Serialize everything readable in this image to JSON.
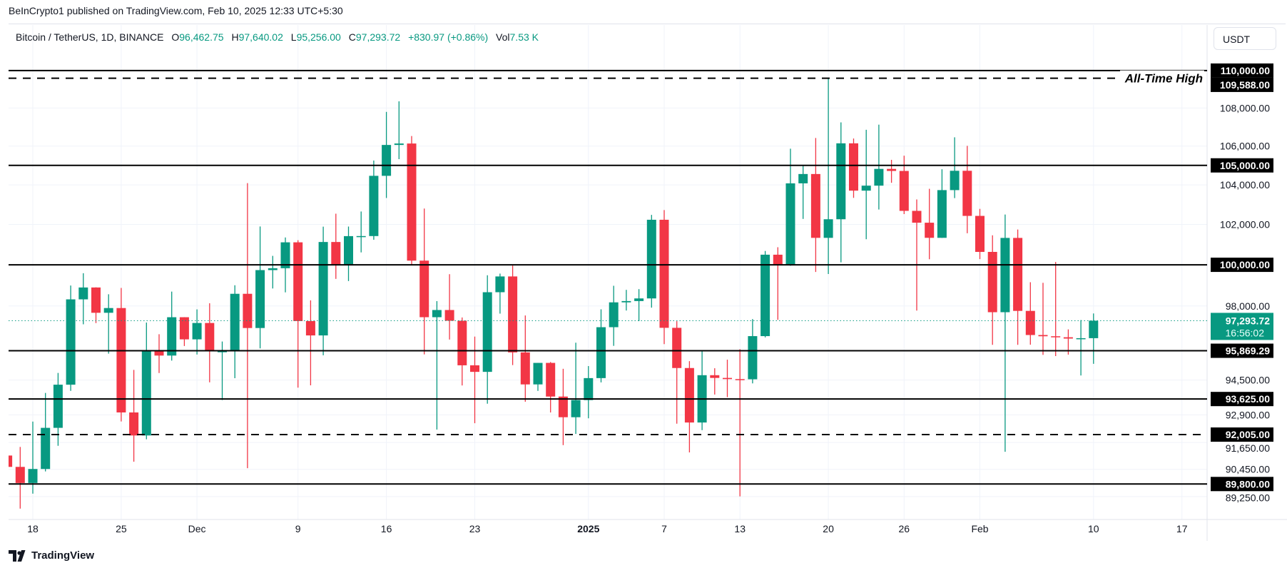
{
  "publisher_line": "BeInCrypto1 published on TradingView.com, Feb 10, 2025 12:33 UTC+5:30",
  "legend": {
    "symbol": "Bitcoin / TetherUS, 1D, BINANCE",
    "o_label": "O",
    "o_value": "96,462.75",
    "h_label": "H",
    "h_value": "97,640.02",
    "l_label": "L",
    "l_value": "95,256.00",
    "c_label": "C",
    "c_value": "97,293.72",
    "change": "+830.97 (+0.86%)",
    "vol_label": "Vol",
    "vol_value": "7.53 K"
  },
  "currency_button": "USDT",
  "footer": {
    "brand": "TradingView"
  },
  "colors": {
    "up": "#089981",
    "down": "#f23645",
    "level_line": "#000000",
    "grid": "#f0f3fa",
    "current_price": "#089981"
  },
  "chart_data": {
    "type": "candlestick",
    "title": "",
    "y_scale": "log",
    "ylim": [
      88560,
      112490
    ],
    "grid": true,
    "y_ticks": [
      {
        "value": 108000,
        "label": "108,000.00"
      },
      {
        "value": 106000,
        "label": "106,000.00"
      },
      {
        "value": 104000,
        "label": "104,000.00"
      },
      {
        "value": 102000,
        "label": "102,000.00"
      },
      {
        "value": 98000,
        "label": "98,000.00"
      },
      {
        "value": 94500,
        "label": "94,500.00"
      },
      {
        "value": 92900,
        "label": "92,900.00"
      },
      {
        "value": 91650,
        "label": "91,650.00"
      },
      {
        "value": 90450,
        "label": "90,450.00"
      },
      {
        "value": 89250,
        "label": "89,250.00"
      }
    ],
    "x_ticks": [
      {
        "date": "2024-11-18",
        "label": "18"
      },
      {
        "date": "2024-11-25",
        "label": "25"
      },
      {
        "date": "2024-12-01",
        "label": "Dec"
      },
      {
        "date": "2024-12-09",
        "label": "9"
      },
      {
        "date": "2024-12-16",
        "label": "16"
      },
      {
        "date": "2024-12-23",
        "label": "23"
      },
      {
        "date": "2025-01-01",
        "label": "2025",
        "bold": true
      },
      {
        "date": "2025-01-07",
        "label": "7"
      },
      {
        "date": "2025-01-13",
        "label": "13"
      },
      {
        "date": "2025-01-20",
        "label": "20"
      },
      {
        "date": "2025-01-26",
        "label": "26"
      },
      {
        "date": "2025-02-01",
        "label": "Feb"
      },
      {
        "date": "2025-02-10",
        "label": "10"
      },
      {
        "date": "2025-02-17",
        "label": "17"
      }
    ],
    "levels": [
      {
        "value": 110000,
        "label": "110,000.00",
        "style": "solid"
      },
      {
        "value": 109588,
        "label": "109,588.00",
        "style": "dashed",
        "annotation": "All-Time High"
      },
      {
        "value": 105000,
        "label": "105,000.00",
        "style": "solid"
      },
      {
        "value": 100000,
        "label": "100,000.00",
        "style": "solid"
      },
      {
        "value": 95869.29,
        "label": "95,869.29",
        "style": "solid"
      },
      {
        "value": 93625,
        "label": "93,625.00",
        "style": "solid"
      },
      {
        "value": 92005,
        "label": "92,005.00",
        "style": "dashed"
      },
      {
        "value": 89800,
        "label": "89,800.00",
        "style": "solid"
      }
    ],
    "current_price": {
      "value": 97293.72,
      "label": "97,293.72",
      "countdown": "16:56:02"
    },
    "candles_columns": [
      "date",
      "open",
      "high",
      "low",
      "close"
    ],
    "candles": [
      [
        "2024-11-16",
        91064,
        91779,
        90056,
        90558
      ],
      [
        "2024-11-17",
        90558,
        91449,
        88722,
        89845
      ],
      [
        "2024-11-18",
        89845,
        92594,
        89376,
        90465
      ],
      [
        "2024-11-19",
        90465,
        93905,
        90357,
        92310
      ],
      [
        "2024-11-20",
        92310,
        94831,
        91500,
        94286
      ],
      [
        "2024-11-21",
        94286,
        98989,
        94000,
        98318
      ],
      [
        "2024-11-22",
        98318,
        99588,
        97122,
        98893
      ],
      [
        "2024-11-23",
        98893,
        98900,
        97180,
        97672
      ],
      [
        "2024-11-24",
        97672,
        98564,
        95734,
        97900
      ],
      [
        "2024-11-25",
        97900,
        98871,
        92600,
        93010
      ],
      [
        "2024-11-26",
        93010,
        94973,
        90791,
        91965
      ],
      [
        "2024-11-27",
        91965,
        97208,
        91792,
        95863
      ],
      [
        "2024-11-28",
        95863,
        96650,
        94827,
        95643
      ],
      [
        "2024-11-29",
        95643,
        98693,
        95407,
        97460
      ],
      [
        "2024-11-30",
        97460,
        97463,
        96092,
        96407
      ],
      [
        "2024-12-01",
        96407,
        97836,
        95693,
        97185
      ],
      [
        "2024-12-02",
        97185,
        98130,
        94395,
        95840
      ],
      [
        "2024-12-03",
        95840,
        96305,
        93578,
        95849
      ],
      [
        "2024-12-04",
        95849,
        99000,
        94587,
        98587
      ],
      [
        "2024-12-05",
        98587,
        104088,
        90500,
        96945
      ],
      [
        "2024-12-06",
        96945,
        101898,
        95981,
        99740
      ],
      [
        "2024-12-07",
        99740,
        100439,
        98844,
        99831
      ],
      [
        "2024-12-08",
        99831,
        101350,
        98657,
        101109
      ],
      [
        "2024-12-09",
        101109,
        101215,
        94150,
        97276
      ],
      [
        "2024-12-10",
        97276,
        98270,
        94256,
        96593
      ],
      [
        "2024-12-11",
        96593,
        101888,
        95658,
        101125
      ],
      [
        "2024-12-12",
        101125,
        102540,
        99311,
        100000
      ],
      [
        "2024-12-13",
        100000,
        101895,
        99205,
        101417
      ],
      [
        "2024-12-14",
        101417,
        102650,
        100610,
        101420
      ],
      [
        "2024-12-15",
        101420,
        105250,
        101237,
        104463
      ],
      [
        "2024-12-16",
        104463,
        107793,
        103333,
        106058
      ],
      [
        "2024-12-17",
        106058,
        108353,
        105321,
        106133
      ],
      [
        "2024-12-18",
        106133,
        106524,
        100000,
        100204
      ],
      [
        "2024-12-19",
        100204,
        102800,
        95700,
        97461
      ],
      [
        "2024-12-20",
        97461,
        98233,
        92232,
        97805
      ],
      [
        "2024-12-21",
        97805,
        99540,
        96398,
        97292
      ],
      [
        "2024-12-22",
        97292,
        97448,
        94250,
        95187
      ],
      [
        "2024-12-23",
        95187,
        96538,
        92520,
        94881
      ],
      [
        "2024-12-24",
        94881,
        99487,
        93410,
        98663
      ],
      [
        "2024-12-25",
        98663,
        99569,
        97632,
        99430
      ],
      [
        "2024-12-26",
        99430,
        99963,
        95199,
        95792
      ],
      [
        "2024-12-27",
        95792,
        97544,
        93500,
        94299
      ],
      [
        "2024-12-28",
        94299,
        95300,
        94000,
        95300
      ],
      [
        "2024-12-29",
        95300,
        95340,
        93009,
        93738
      ],
      [
        "2024-12-30",
        93738,
        95024,
        91530,
        92792
      ],
      [
        "2024-12-31",
        92792,
        96250,
        92033,
        93576
      ],
      [
        "2025-01-01",
        93576,
        95151,
        92743,
        94591
      ],
      [
        "2025-01-02",
        94591,
        97839,
        94392,
        96984
      ],
      [
        "2025-01-03",
        96984,
        98976,
        96100,
        98174
      ],
      [
        "2025-01-04",
        98174,
        98778,
        97781,
        98236
      ],
      [
        "2025-01-05",
        98236,
        98813,
        97274,
        98363
      ],
      [
        "2025-01-06",
        98363,
        102480,
        97920,
        102235
      ],
      [
        "2025-01-07",
        102235,
        102724,
        96181,
        96954
      ],
      [
        "2025-01-08",
        96954,
        97268,
        92500,
        95060
      ],
      [
        "2025-01-09",
        95060,
        95382,
        91203,
        92552
      ],
      [
        "2025-01-10",
        92552,
        95836,
        92206,
        94726
      ],
      [
        "2025-01-11",
        94726,
        95050,
        93831,
        94599
      ],
      [
        "2025-01-12",
        94599,
        95450,
        93711,
        94545
      ],
      [
        "2025-01-13",
        94545,
        95940,
        89256,
        94536
      ],
      [
        "2025-01-14",
        94536,
        97371,
        94346,
        96560
      ],
      [
        "2025-01-15",
        96560,
        100681,
        96500,
        100497
      ],
      [
        "2025-01-16",
        100497,
        100866,
        97335,
        99987
      ],
      [
        "2025-01-17",
        99987,
        105865,
        99950,
        104078
      ],
      [
        "2025-01-18",
        104078,
        104988,
        102277,
        104556
      ],
      [
        "2025-01-19",
        104556,
        106422,
        99651,
        101331
      ],
      [
        "2025-01-20",
        101331,
        109588,
        99550,
        102260
      ],
      [
        "2025-01-21",
        102260,
        107240,
        100119,
        106143
      ],
      [
        "2025-01-22",
        106143,
        106394,
        103339,
        103706
      ],
      [
        "2025-01-23",
        103706,
        106850,
        101262,
        103960
      ],
      [
        "2025-01-24",
        103960,
        107120,
        102750,
        104819
      ],
      [
        "2025-01-25",
        104819,
        105286,
        104106,
        104714
      ],
      [
        "2025-01-26",
        104714,
        105500,
        102520,
        102682
      ],
      [
        "2025-01-27",
        102682,
        103260,
        97777,
        102087
      ],
      [
        "2025-01-28",
        102087,
        103800,
        100272,
        101332
      ],
      [
        "2025-01-29",
        101332,
        104800,
        101328,
        103733
      ],
      [
        "2025-01-30",
        103733,
        106457,
        103327,
        104722
      ],
      [
        "2025-01-31",
        104722,
        106012,
        101560,
        102429
      ],
      [
        "2025-02-01",
        102429,
        102783,
        100279,
        100635
      ],
      [
        "2025-02-02",
        100635,
        101456,
        96150,
        97700
      ],
      [
        "2025-02-03",
        97700,
        102500,
        91231,
        101328
      ],
      [
        "2025-02-04",
        101328,
        101745,
        96150,
        97763
      ],
      [
        "2025-02-05",
        97763,
        99149,
        96155,
        96612
      ],
      [
        "2025-02-06",
        96612,
        99120,
        95676,
        96554
      ],
      [
        "2025-02-07",
        96554,
        100137,
        95620,
        96506
      ],
      [
        "2025-02-08",
        96506,
        96880,
        95688,
        96444
      ],
      [
        "2025-02-09",
        96444,
        97323,
        94713,
        96462
      ],
      [
        "2025-02-10",
        96462.75,
        97640.02,
        95256,
        97293.72
      ]
    ]
  }
}
